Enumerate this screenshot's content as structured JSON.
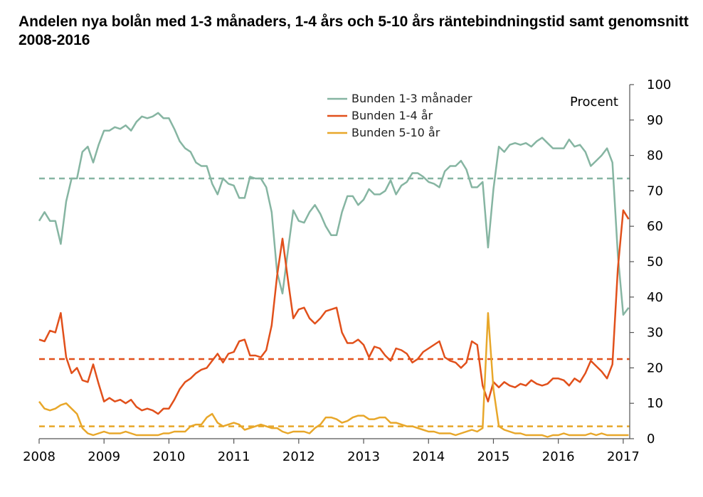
{
  "title": "Andelen nya bolån med 1-3 månaders, 1-4 års och 5-10 års räntebindningstid samt genomsnitt 2008-2016",
  "chart_data": {
    "type": "line",
    "title": "Andelen nya bolån med 1-3 månaders, 1-4 års och 5-10 års räntebindningstid samt genomsnitt 2008-2016",
    "ylabel": "Procent",
    "ylim": [
      0,
      100
    ],
    "yticks": [
      0,
      10,
      20,
      30,
      40,
      50,
      60,
      70,
      80,
      90,
      100
    ],
    "xlim": [
      2008,
      2017.1
    ],
    "xticks": [
      "2008",
      "2009",
      "2010",
      "2011",
      "2012",
      "2013",
      "2014",
      "2015",
      "2016",
      "2017"
    ],
    "legend_position": "top-center",
    "grid": false,
    "x_start": 2008.0,
    "x_step_months": 1,
    "series": [
      {
        "name": "Bunden 1-3 månader",
        "color": "#86b5a2",
        "values": [
          61.5,
          64,
          61.5,
          61.5,
          55,
          67,
          73.5,
          73.5,
          81,
          82.5,
          78,
          83,
          87,
          87,
          88,
          87.5,
          88.5,
          87,
          89.5,
          91,
          90.5,
          91,
          92,
          90.5,
          90.5,
          87.5,
          84,
          82,
          81,
          78,
          77,
          77,
          72,
          69,
          73.5,
          72,
          71.5,
          68,
          68,
          74,
          73.5,
          73.5,
          71,
          64,
          47,
          41,
          53,
          64.5,
          61.5,
          61,
          64,
          66,
          63.5,
          60,
          57.5,
          57.5,
          64,
          68.5,
          68.5,
          66,
          67.5,
          70.5,
          69,
          69,
          70,
          73,
          69,
          71.5,
          72.5,
          75,
          75,
          74,
          72.5,
          72,
          71,
          75.5,
          77,
          77,
          78.5,
          76,
          71,
          71,
          72.5,
          54,
          70.5,
          82.5,
          81,
          83,
          83.5,
          83,
          83.5,
          82.5,
          84,
          85,
          83.5,
          82,
          82,
          82,
          84.5,
          82.5,
          83,
          81,
          77,
          78.5,
          80,
          82,
          78,
          52,
          35,
          37
        ]
      },
      {
        "name": "Bunden 1-4 år",
        "color": "#e1501b",
        "values": [
          28,
          27.5,
          30.5,
          30,
          35.5,
          23,
          18.5,
          20,
          16.5,
          16,
          21,
          15.5,
          10.5,
          11.5,
          10.5,
          11,
          10,
          11,
          9,
          8,
          8.5,
          8,
          7,
          8.5,
          8.5,
          11,
          14,
          16,
          17,
          18.5,
          19.5,
          20,
          22,
          24,
          21.5,
          24,
          24.5,
          27.5,
          28,
          23.5,
          23.5,
          23,
          25,
          32,
          46,
          56.5,
          45,
          34,
          36.5,
          37,
          34,
          32.5,
          34,
          36,
          36.5,
          37,
          30,
          27,
          27,
          28,
          26.5,
          23,
          26,
          25.5,
          23.5,
          22,
          25.5,
          25,
          24,
          21.5,
          22.5,
          24.5,
          25.5,
          26.5,
          27.5,
          23,
          22,
          21.5,
          20,
          21.5,
          27.5,
          26.5,
          15,
          10.5,
          16,
          14.5,
          16,
          15,
          14.5,
          15.5,
          15,
          16.5,
          15.5,
          15,
          15.5,
          17,
          17,
          16.5,
          15,
          17,
          16,
          18.5,
          22,
          20.5,
          19,
          17,
          21,
          48,
          64.5,
          62
        ]
      },
      {
        "name": "Bunden 5-10 år",
        "color": "#e8a72a",
        "values": [
          10.5,
          8.5,
          8,
          8.5,
          9.5,
          10,
          8.5,
          7,
          3,
          1.5,
          1,
          1.5,
          2,
          1.5,
          1.5,
          1.5,
          2,
          1.5,
          1,
          1,
          1,
          1,
          1,
          1.5,
          1.5,
          2,
          2,
          2,
          3.5,
          4,
          4,
          6,
          7,
          4.5,
          3.5,
          4,
          4.5,
          4,
          2.5,
          3,
          3.5,
          4,
          3.5,
          3,
          3,
          2,
          1.5,
          2,
          2,
          2,
          1.5,
          3,
          4,
          6,
          6,
          5.5,
          4.5,
          5,
          6,
          6.5,
          6.5,
          5.5,
          5.5,
          6,
          6,
          4.5,
          4.5,
          4,
          3.5,
          3.5,
          3,
          2.5,
          2,
          2,
          1.5,
          1.5,
          1.5,
          1,
          1.5,
          2,
          2.5,
          2,
          3,
          35.5,
          14,
          3.5,
          2.5,
          2,
          1.5,
          1.5,
          1,
          1,
          1,
          1,
          0.5,
          1,
          1,
          1.5,
          1,
          1,
          1,
          1,
          1.5,
          1,
          1.5,
          1,
          1,
          1,
          1,
          1
        ]
      }
    ],
    "averages": [
      {
        "series": "Bunden 1-3 månader",
        "value": 73.5,
        "color": "#86b5a2"
      },
      {
        "series": "Bunden 1-4 år",
        "value": 22.5,
        "color": "#e1501b"
      },
      {
        "series": "Bunden 5-10 år",
        "value": 3.5,
        "color": "#e8a72a"
      }
    ]
  }
}
